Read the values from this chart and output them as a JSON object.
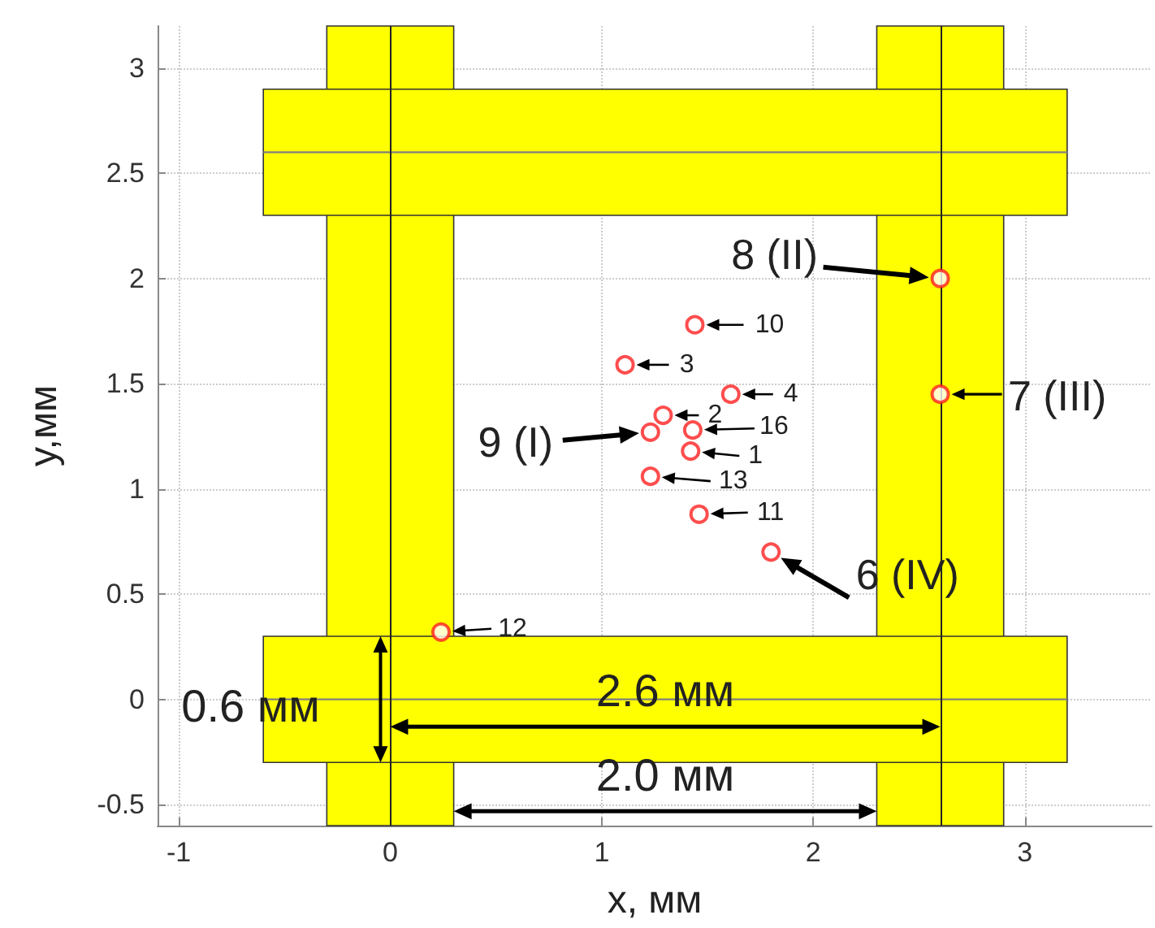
{
  "chart_data": {
    "type": "scatter",
    "xlabel": "x, мм",
    "ylabel": "y,мм",
    "xlim": [
      -1.1,
      3.6
    ],
    "ylim": [
      -0.6,
      3.2
    ],
    "xticks": [
      -1,
      0,
      1,
      2,
      3
    ],
    "yticks": [
      -0.5,
      0,
      0.5,
      1,
      1.5,
      2,
      2.5,
      3
    ],
    "grid": true,
    "bands": [
      {
        "axis": "x",
        "from": -0.3,
        "to": 0.3,
        "color": "#ffff00"
      },
      {
        "axis": "x",
        "from": 2.3,
        "to": 2.9,
        "color": "#ffff00"
      }
    ],
    "ref_lines": [
      {
        "axis": "x",
        "value": 0,
        "color": "#222222"
      },
      {
        "axis": "x",
        "value": 2.6,
        "color": "#222222"
      }
    ],
    "series": [
      {
        "type": "scatter",
        "marker": "circle",
        "color": "#ff2020",
        "x": [
          1.42,
          1.29,
          1.11,
          1.61,
          1.8,
          2.6,
          2.6,
          1.23,
          1.44,
          1.46,
          0.24,
          1.23,
          1.43
        ],
        "values": [
          1.18,
          1.35,
          1.59,
          1.45,
          0.7,
          1.45,
          2.0,
          1.27,
          1.78,
          0.88,
          0.32,
          1.06,
          1.28
        ]
      },
      {
        "type": "line",
        "marker": "none",
        "color": "#808080",
        "x": [
          -0.6,
          3.2
        ],
        "values": [
          2.6,
          2.6
        ],
        "lower": [
          2.3,
          2.3
        ],
        "upper": [
          2.9,
          2.9
        ]
      },
      {
        "type": "line",
        "marker": "none",
        "color": "#808080",
        "x": [
          -0.6,
          3.2
        ],
        "values": [
          0,
          0
        ],
        "lower": [
          -0.3,
          -0.3
        ],
        "upper": [
          0.3,
          0.3
        ]
      }
    ],
    "annotations": [
      "0.6 мм",
      "2.6 мм",
      "2.0 мм",
      {
        "text": "1",
        "x": 1.42,
        "y": 1.18
      },
      {
        "text": "2",
        "x": 1.29,
        "y": 1.35
      },
      {
        "text": "3",
        "x": 1.11,
        "y": 1.59
      },
      {
        "text": "4",
        "x": 1.61,
        "y": 1.45
      },
      {
        "text": "6 (IV)",
        "x": 1.8,
        "y": 0.7
      },
      {
        "text": "7 (III)",
        "x": 2.6,
        "y": 1.45
      },
      {
        "text": "8 (II)",
        "x": 2.6,
        "y": 2.0
      },
      {
        "text": "9 (I)",
        "x": 1.23,
        "y": 1.27
      },
      {
        "text": "10",
        "x": 1.44,
        "y": 1.78
      },
      {
        "text": "11",
        "x": 1.46,
        "y": 0.88
      },
      {
        "text": "12",
        "x": 0.24,
        "y": 0.32
      },
      {
        "text": "13",
        "x": 1.23,
        "y": 1.06
      },
      {
        "text": "16",
        "x": 1.43,
        "y": 1.28
      }
    ]
  }
}
